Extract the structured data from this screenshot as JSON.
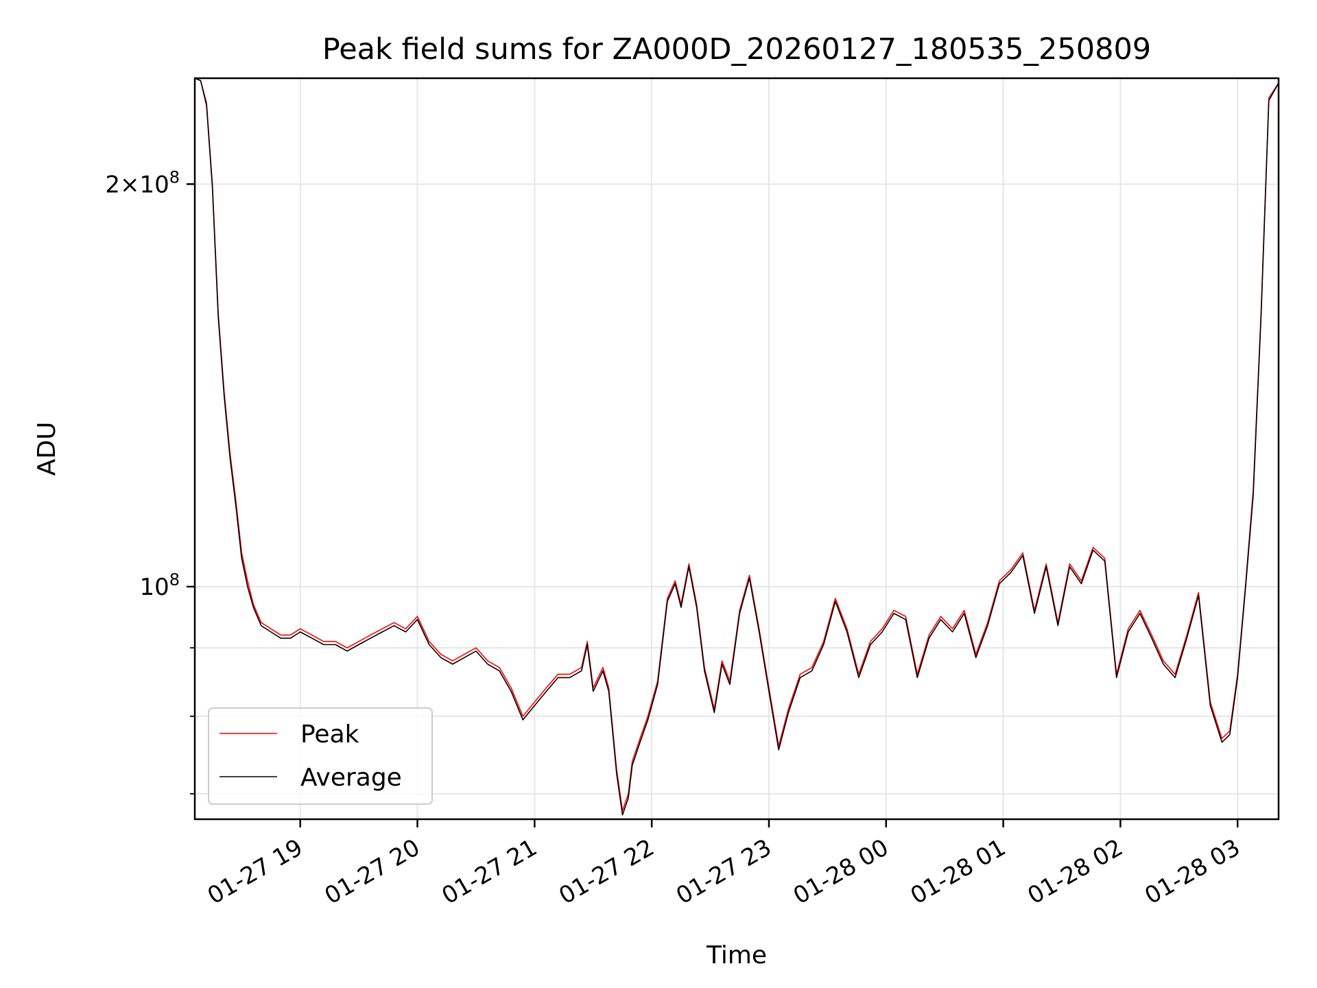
{
  "chart_data": {
    "type": "line",
    "title": "Peak field sums for ZA000D_20260127_180535_250809",
    "xlabel": "Time",
    "ylabel": "ADU",
    "y_scale": "log",
    "xlim": [
      "2026-01-27 18:06",
      "2026-01-28 03:21"
    ],
    "ylim": [
      67000000,
      240000000
    ],
    "grid": true,
    "legend_position": "lower-left",
    "x_ticks": [
      {
        "value": "2026-01-27 19:00",
        "label": "01-27 19"
      },
      {
        "value": "2026-01-27 20:00",
        "label": "01-27 20"
      },
      {
        "value": "2026-01-27 21:00",
        "label": "01-27 21"
      },
      {
        "value": "2026-01-27 22:00",
        "label": "01-27 22"
      },
      {
        "value": "2026-01-27 23:00",
        "label": "01-27 23"
      },
      {
        "value": "2026-01-28 00:00",
        "label": "01-28 00"
      },
      {
        "value": "2026-01-28 01:00",
        "label": "01-28 01"
      },
      {
        "value": "2026-01-28 02:00",
        "label": "01-28 02"
      },
      {
        "value": "2026-01-28 03:00",
        "label": "01-28 03"
      }
    ],
    "y_major_ticks": [
      {
        "value": 100000000,
        "base": "10",
        "exp": "8",
        "mantissa": ""
      },
      {
        "value": 200000000,
        "base": "10",
        "exp": "8",
        "mantissa": "2"
      }
    ],
    "y_minor_ticks": [
      70000000,
      80000000,
      90000000
    ],
    "x": [
      "2026-01-27 18:06",
      "2026-01-27 18:09",
      "2026-01-27 18:12",
      "2026-01-27 18:15",
      "2026-01-27 18:18",
      "2026-01-27 18:21",
      "2026-01-27 18:24",
      "2026-01-27 18:27",
      "2026-01-27 18:30",
      "2026-01-27 18:33",
      "2026-01-27 18:36",
      "2026-01-27 18:40",
      "2026-01-27 18:45",
      "2026-01-27 18:50",
      "2026-01-27 18:55",
      "2026-01-27 19:00",
      "2026-01-27 19:06",
      "2026-01-27 19:12",
      "2026-01-27 19:18",
      "2026-01-27 19:24",
      "2026-01-27 19:30",
      "2026-01-27 19:36",
      "2026-01-27 19:42",
      "2026-01-27 19:48",
      "2026-01-27 19:54",
      "2026-01-27 20:00",
      "2026-01-27 20:06",
      "2026-01-27 20:12",
      "2026-01-27 20:18",
      "2026-01-27 20:24",
      "2026-01-27 20:30",
      "2026-01-27 20:36",
      "2026-01-27 20:42",
      "2026-01-27 20:48",
      "2026-01-27 20:54",
      "2026-01-27 21:00",
      "2026-01-27 21:06",
      "2026-01-27 21:12",
      "2026-01-27 21:18",
      "2026-01-27 21:24",
      "2026-01-27 21:27",
      "2026-01-27 21:30",
      "2026-01-27 21:35",
      "2026-01-27 21:38",
      "2026-01-27 21:42",
      "2026-01-27 21:45",
      "2026-01-27 21:48",
      "2026-01-27 21:50",
      "2026-01-27 21:54",
      "2026-01-27 21:58",
      "2026-01-27 22:03",
      "2026-01-27 22:08",
      "2026-01-27 22:12",
      "2026-01-27 22:15",
      "2026-01-27 22:19",
      "2026-01-27 22:23",
      "2026-01-27 22:27",
      "2026-01-27 22:32",
      "2026-01-27 22:36",
      "2026-01-27 22:40",
      "2026-01-27 22:45",
      "2026-01-27 22:50",
      "2026-01-27 22:55",
      "2026-01-27 23:00",
      "2026-01-27 23:05",
      "2026-01-27 23:10",
      "2026-01-27 23:16",
      "2026-01-27 23:22",
      "2026-01-27 23:28",
      "2026-01-27 23:34",
      "2026-01-27 23:40",
      "2026-01-27 23:46",
      "2026-01-27 23:52",
      "2026-01-27 23:58",
      "2026-01-28 00:04",
      "2026-01-28 00:10",
      "2026-01-28 00:16",
      "2026-01-28 00:22",
      "2026-01-28 00:28",
      "2026-01-28 00:34",
      "2026-01-28 00:40",
      "2026-01-28 00:46",
      "2026-01-28 00:52",
      "2026-01-28 00:58",
      "2026-01-28 01:04",
      "2026-01-28 01:10",
      "2026-01-28 01:16",
      "2026-01-28 01:22",
      "2026-01-28 01:28",
      "2026-01-28 01:34",
      "2026-01-28 01:40",
      "2026-01-28 01:46",
      "2026-01-28 01:52",
      "2026-01-28 01:58",
      "2026-01-28 02:04",
      "2026-01-28 02:10",
      "2026-01-28 02:16",
      "2026-01-28 02:22",
      "2026-01-28 02:28",
      "2026-01-28 02:34",
      "2026-01-28 02:40",
      "2026-01-28 02:46",
      "2026-01-28 02:52",
      "2026-01-28 02:56",
      "2026-01-28 03:00",
      "2026-01-28 03:04",
      "2026-01-28 03:08",
      "2026-01-28 03:12",
      "2026-01-28 03:16",
      "2026-01-28 03:21"
    ],
    "series": [
      {
        "name": "Peak",
        "color": "#ff0000",
        "values": [
          240000000,
          239000000,
          230000000,
          200000000,
          160000000,
          140000000,
          126000000,
          116000000,
          106000000,
          101000000,
          97000000,
          94000000,
          93000000,
          92000000,
          92000000,
          93000000,
          92000000,
          91000000,
          91000000,
          90000000,
          91000000,
          92000000,
          93000000,
          94000000,
          93000000,
          95000000,
          91000000,
          89000000,
          88000000,
          89000000,
          90000000,
          88000000,
          87000000,
          84000000,
          80000000,
          82000000,
          84000000,
          86000000,
          86000000,
          87000000,
          91000000,
          84000000,
          87000000,
          84000000,
          73000000,
          68000000,
          70000000,
          74000000,
          77000000,
          80000000,
          85000000,
          98000000,
          101000000,
          97000000,
          104000000,
          97000000,
          87000000,
          81000000,
          88000000,
          85000000,
          96000000,
          102000000,
          93000000,
          84000000,
          76000000,
          81000000,
          86000000,
          87000000,
          91000000,
          98000000,
          93000000,
          86000000,
          91000000,
          93000000,
          96000000,
          95000000,
          86000000,
          92000000,
          95000000,
          93000000,
          96000000,
          89000000,
          94000000,
          101000000,
          103000000,
          106000000,
          96000000,
          104000000,
          94000000,
          104000000,
          101000000,
          107000000,
          105000000,
          86000000,
          93000000,
          96000000,
          92000000,
          88000000,
          86000000,
          92000000,
          99000000,
          82000000,
          77000000,
          78000000,
          86000000,
          100000000,
          118000000,
          160000000,
          232000000,
          238000000
        ]
      },
      {
        "name": "Average",
        "color": "#000000",
        "values": [
          240000000,
          239000000,
          229000000,
          199000000,
          159000000,
          139000000,
          125000000,
          115000000,
          105000000,
          100000000,
          96500000,
          93500000,
          92500000,
          91500000,
          91500000,
          92500000,
          91500000,
          90500000,
          90500000,
          89500000,
          90500000,
          91500000,
          92500000,
          93500000,
          92500000,
          94500000,
          90500000,
          88500000,
          87500000,
          88500000,
          89500000,
          87500000,
          86500000,
          83500000,
          79500000,
          81500000,
          83500000,
          85500000,
          85500000,
          86500000,
          90500000,
          83500000,
          86500000,
          83500000,
          72500000,
          67500000,
          69500000,
          73500000,
          76500000,
          79500000,
          84500000,
          97500000,
          100500000,
          96500000,
          103500000,
          96500000,
          86500000,
          80500000,
          87500000,
          84500000,
          95500000,
          101500000,
          92500000,
          83500000,
          75500000,
          80500000,
          85500000,
          86500000,
          90500000,
          97500000,
          92500000,
          85500000,
          90500000,
          92500000,
          95500000,
          94500000,
          85500000,
          91500000,
          94500000,
          92500000,
          95500000,
          88500000,
          93500000,
          100500000,
          102500000,
          105500000,
          95500000,
          103500000,
          93500000,
          103500000,
          100500000,
          106500000,
          104500000,
          85500000,
          92500000,
          95500000,
          91500000,
          87500000,
          85500000,
          91500000,
          98500000,
          81500000,
          76500000,
          77500000,
          85500000,
          99500000,
          117000000,
          159000000,
          231000000,
          238000000
        ]
      }
    ]
  }
}
